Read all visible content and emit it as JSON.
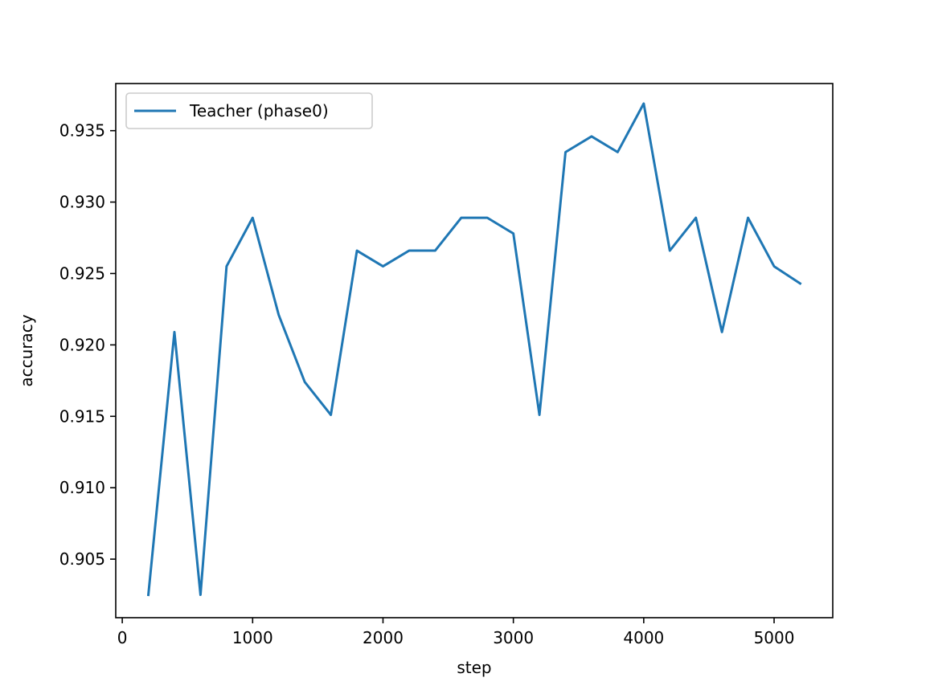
{
  "chart_data": {
    "type": "line",
    "title": "",
    "xlabel": "step",
    "ylabel": "accuracy",
    "xlim": [
      -50,
      5450
    ],
    "ylim": [
      0.9009,
      0.9383
    ],
    "x_ticks": [
      0,
      1000,
      2000,
      3000,
      4000,
      5000
    ],
    "y_ticks": [
      0.905,
      0.91,
      0.915,
      0.92,
      0.925,
      0.93,
      0.935
    ],
    "grid": false,
    "legend_position": "upper left",
    "series": [
      {
        "name": "Teacher (phase0)",
        "color": "#1f77b4",
        "x": [
          200,
          400,
          600,
          800,
          1000,
          1200,
          1400,
          1600,
          1800,
          2000,
          2200,
          2400,
          2600,
          2800,
          3000,
          3200,
          3400,
          3600,
          3800,
          4000,
          4200,
          4400,
          4600,
          4800,
          5000,
          5200
        ],
        "y": [
          0.9025,
          0.9209,
          0.9025,
          0.9255,
          0.9289,
          0.9221,
          0.9174,
          0.9151,
          0.9266,
          0.9255,
          0.9266,
          0.9266,
          0.9289,
          0.9289,
          0.9278,
          0.9151,
          0.9335,
          0.9346,
          0.9335,
          0.9369,
          0.9266,
          0.9289,
          0.9209,
          0.9289,
          0.9255,
          0.9243
        ]
      }
    ]
  }
}
